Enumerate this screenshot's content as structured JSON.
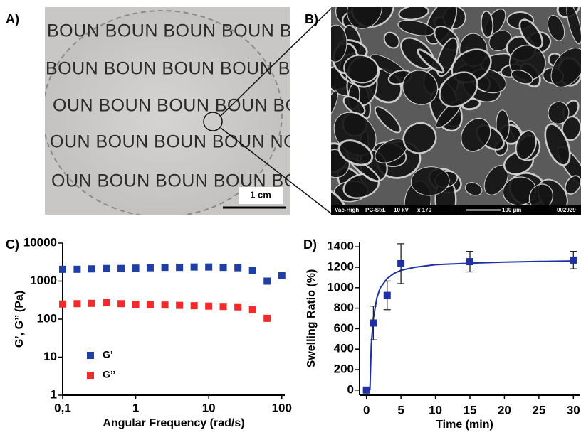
{
  "panels": {
    "a": {
      "label": "A)",
      "photo_rows": [
        "BOUN BOUN BOUN BOUN BO",
        "BOUN BOUN BOUN BOUN BO",
        "OUN BOUN BOUN BOUN BO",
        "OUN BOUN BOUN BOUN NO",
        "OUN BOUN BOUN BOUN BO"
      ],
      "scale_bar": "1 cm"
    },
    "b": {
      "label": "B)",
      "sem_info": [
        "Vac-High",
        "PC-Std.",
        "10 kV",
        "x 170",
        "100 µm",
        "002929"
      ]
    },
    "c": {
      "label": "C)"
    },
    "d": {
      "label": "D)"
    }
  },
  "chart_data": [
    {
      "type": "scatter",
      "log_x": true,
      "log_y": true,
      "x_label": "Angular Frequency (rad/s)",
      "y_label": "G’, G’’ (Pa)",
      "x": [
        0.1,
        0.158,
        0.251,
        0.398,
        0.631,
        1,
        1.58,
        2.51,
        3.98,
        6.31,
        10,
        15.8,
        25.1,
        39.8,
        63.1,
        100
      ],
      "series": [
        {
          "name": "G’",
          "color": "#1f3fa6",
          "values": [
            2050,
            2050,
            2100,
            2150,
            2150,
            2200,
            2250,
            2300,
            2300,
            2350,
            2350,
            2300,
            2250,
            1900,
            1000,
            1400
          ]
        },
        {
          "name": "G’’",
          "color": "#f42a2a",
          "values": [
            250,
            255,
            260,
            270,
            255,
            245,
            240,
            235,
            230,
            225,
            220,
            215,
            210,
            175,
            105,
            null
          ]
        }
      ],
      "xlim": [
        0.1,
        110
      ],
      "ylim": [
        1,
        10000
      ],
      "xticks": [
        {
          "value": 0.1,
          "label": "0,1"
        },
        1,
        10,
        100
      ],
      "yticks": [
        1,
        10,
        100,
        1000,
        10000
      ],
      "legend": "lower-left"
    },
    {
      "type": "scatter",
      "x_label": "Time (min)",
      "y_label": "Swelling Ratio (%)",
      "x": [
        0,
        1,
        3,
        5,
        15,
        30
      ],
      "series": [
        {
          "color": "#1f2fa6",
          "values": [
            0,
            655,
            925,
            1235,
            1255,
            1270
          ],
          "errors": [
            0,
            165,
            140,
            195,
            100,
            85
          ]
        }
      ],
      "fit": {
        "color": "#1f2fa6",
        "x": [
          0.5,
          0.7,
          1,
          1.5,
          2,
          3,
          4,
          5,
          7,
          10,
          15,
          20,
          25,
          30
        ],
        "values": [
          0,
          450,
          700,
          900,
          1000,
          1090,
          1140,
          1170,
          1200,
          1225,
          1240,
          1250,
          1257,
          1262
        ]
      },
      "xlim": [
        -1,
        31
      ],
      "ylim": [
        -50,
        1450
      ],
      "xticks": [
        0,
        5,
        10,
        15,
        20,
        25,
        30
      ],
      "yticks": [
        0,
        200,
        400,
        600,
        800,
        1000,
        1200,
        1400
      ]
    }
  ]
}
